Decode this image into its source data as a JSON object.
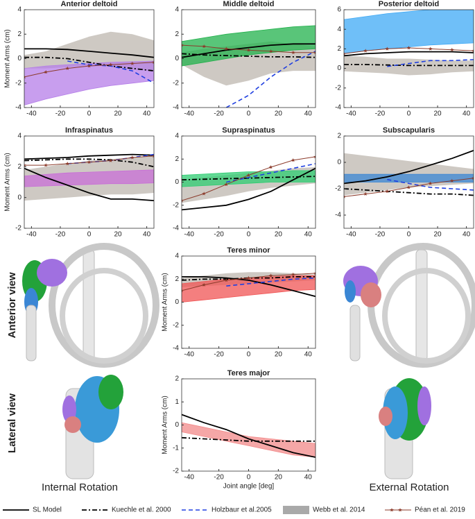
{
  "chart_data": [
    {
      "type": "line",
      "title": "Anterior deltoid",
      "ylabel": "Moment Arms (cm)",
      "x": [
        -45,
        -30,
        -15,
        0,
        15,
        30,
        45
      ],
      "xlim": [
        -45,
        45
      ],
      "xticks": [
        -40,
        -20,
        0,
        20,
        40
      ],
      "ylim": [
        -4,
        4
      ],
      "yticks": [
        -4,
        -2,
        0,
        2,
        4
      ],
      "series": [
        {
          "style": "band",
          "color": "#c9c3bd",
          "lower": [
            -0.8,
            -0.8,
            -0.7,
            -0.6,
            -0.6,
            -0.9,
            -1
          ],
          "upper": [
            0.3,
            0.6,
            1.2,
            1.8,
            2.2,
            2.0,
            1.5
          ]
        },
        {
          "style": "fan",
          "color": "#b57ee8",
          "lower": [
            -3.8,
            -3.3,
            -2.9,
            -2.5,
            -2.2,
            -2,
            -1.8
          ],
          "upper": [
            -0.8,
            -0.6,
            -0.5,
            -0.4,
            -0.3,
            -0.25,
            -0.2
          ]
        },
        {
          "style": "solid",
          "color": "#000000",
          "values": [
            0.8,
            0.8,
            0.75,
            0.6,
            0.45,
            0.3,
            0.1
          ]
        },
        {
          "style": "dashdot",
          "color": "#000000",
          "values": [
            0.1,
            0.1,
            0,
            -0.3,
            -0.6,
            -0.8,
            -1.0
          ]
        },
        {
          "style": "dashed",
          "color": "#1f3fe0",
          "values": [
            null,
            null,
            -0.2,
            -0.5,
            -0.6,
            -1.0,
            -2.0
          ]
        },
        {
          "style": "markers",
          "color": "#8b3a2a",
          "values": [
            -1.5,
            -1.1,
            -0.8,
            -0.6,
            -0.5,
            -0.4,
            -0.3
          ]
        }
      ]
    },
    {
      "type": "line",
      "title": "Middle deltoid",
      "x": [
        -45,
        -30,
        -15,
        0,
        15,
        30,
        45
      ],
      "xlim": [
        -45,
        45
      ],
      "xticks": [
        -40,
        -20,
        0,
        20,
        40
      ],
      "ylim": [
        -4,
        4
      ],
      "yticks": [
        -4,
        -2,
        0,
        2,
        4
      ],
      "series": [
        {
          "style": "band",
          "color": "#c9c3bd",
          "lower": [
            -0.5,
            -1.5,
            -2.2,
            -1.8,
            -1.2,
            -1,
            -1
          ],
          "upper": [
            0.5,
            0.8,
            1,
            1.2,
            1.4,
            1.2,
            1.0
          ]
        },
        {
          "style": "fan",
          "color": "#22b14c",
          "lower": [
            -0.6,
            -0.3,
            0,
            0.3,
            0.5,
            0.7,
            0.8
          ],
          "upper": [
            1.4,
            1.7,
            2,
            2.2,
            2.4,
            2.6,
            2.7
          ]
        },
        {
          "style": "solid",
          "color": "#000000",
          "values": [
            0.1,
            0.4,
            0.7,
            0.9,
            1.1,
            1.2,
            1.2
          ]
        },
        {
          "style": "dashdot",
          "color": "#000000",
          "values": [
            0.4,
            0.3,
            0.25,
            0.2,
            0.15,
            0.15,
            0.1
          ]
        },
        {
          "style": "dashed",
          "color": "#1f3fe0",
          "values": [
            null,
            null,
            -4,
            -3,
            -1.5,
            -0.3,
            0.6
          ]
        },
        {
          "style": "markers",
          "color": "#8b3a2a",
          "values": [
            1.1,
            1.0,
            0.8,
            0.7,
            0.6,
            0.5,
            0.5
          ]
        }
      ]
    },
    {
      "type": "line",
      "title": "Posterior deltoid",
      "x": [
        -45,
        -30,
        -15,
        0,
        15,
        30,
        45
      ],
      "xlim": [
        -45,
        45
      ],
      "xticks": [
        -40,
        -20,
        0,
        20,
        40
      ],
      "ylim": [
        -4,
        6
      ],
      "yticks": [
        -4,
        -2,
        0,
        2,
        4,
        6
      ],
      "series": [
        {
          "style": "band",
          "color": "#c9c3bd",
          "lower": [
            -0.3,
            -0.4,
            -0.5,
            -0.7,
            -0.6,
            -0.4,
            -0.3
          ],
          "upper": [
            1.3,
            1.2,
            1.0,
            1.0,
            0.9,
            0.8,
            0.8
          ]
        },
        {
          "style": "fan",
          "color": "#3fa9f5",
          "lower": [
            1.5,
            1.8,
            2,
            2.2,
            2.4,
            2.5,
            2.6
          ],
          "upper": [
            5,
            5.3,
            5.6,
            5.8,
            6,
            6,
            6
          ]
        },
        {
          "style": "solid",
          "color": "#000000",
          "values": [
            1.3,
            1.5,
            1.6,
            1.7,
            1.7,
            1.7,
            1.6
          ]
        },
        {
          "style": "dashdot",
          "color": "#000000",
          "values": [
            0.4,
            0.4,
            0.35,
            0.3,
            0.3,
            0.3,
            0.3
          ]
        },
        {
          "style": "dashed",
          "color": "#1f3fe0",
          "values": [
            null,
            null,
            0.2,
            0.5,
            0.8,
            0.8,
            0.9
          ]
        },
        {
          "style": "markers",
          "color": "#8b3a2a",
          "values": [
            1.5,
            1.8,
            2.0,
            2.1,
            2.0,
            1.9,
            1.8
          ]
        }
      ]
    },
    {
      "type": "line",
      "title": "Infraspinatus",
      "ylabel": "Moment Arms (cm)",
      "x": [
        -45,
        -30,
        -15,
        0,
        15,
        30,
        45
      ],
      "xlim": [
        -45,
        45
      ],
      "xticks": [
        -40,
        -20,
        0,
        20,
        40
      ],
      "ylim": [
        -2,
        4
      ],
      "yticks": [
        -2,
        0,
        2,
        4
      ],
      "series": [
        {
          "style": "band",
          "color": "#c9c3bd",
          "lower": [
            -0.2,
            -0.1,
            0,
            0.1,
            0.2,
            0.2,
            0.3
          ],
          "upper": [
            1.8,
            2.0,
            2.2,
            2.4,
            2.5,
            2.6,
            2.7
          ]
        },
        {
          "style": "fan",
          "color": "#c86dd7",
          "lower": [
            0.7,
            0.75,
            0.8,
            0.85,
            0.9,
            0.9,
            0.95
          ],
          "upper": [
            1.4,
            1.5,
            1.6,
            1.65,
            1.7,
            1.75,
            1.8
          ]
        },
        {
          "style": "solid",
          "color": "#000000",
          "values": [
            2.5,
            2.55,
            2.6,
            2.7,
            2.75,
            2.8,
            2.75
          ]
        },
        {
          "style": "solid",
          "color": "#000000",
          "values": [
            1.9,
            1.3,
            0.8,
            0.3,
            -0.1,
            -0.1,
            -0.2
          ]
        },
        {
          "style": "dashdot",
          "color": "#000000",
          "values": [
            2.4,
            2.45,
            2.5,
            2.5,
            2.45,
            2.3,
            2.0
          ]
        },
        {
          "style": "dashed",
          "color": "#1f3fe0",
          "values": [
            null,
            null,
            2.2,
            2.3,
            2.4,
            2.6,
            2.8
          ]
        },
        {
          "style": "markers",
          "color": "#8b3a2a",
          "values": [
            2.1,
            2.1,
            2.2,
            2.3,
            2.4,
            2.6,
            2.7
          ]
        }
      ]
    },
    {
      "type": "line",
      "title": "Supraspinatus",
      "x": [
        -45,
        -30,
        -15,
        0,
        15,
        30,
        45
      ],
      "xlim": [
        -45,
        45
      ],
      "xticks": [
        -40,
        -20,
        0,
        20,
        40
      ],
      "ylim": [
        -4,
        4
      ],
      "yticks": [
        -4,
        -2,
        0,
        2,
        4
      ],
      "series": [
        {
          "style": "band",
          "color": "#c9c3bd",
          "lower": [
            -1.8,
            -1.5,
            -1.2,
            -0.8,
            -0.5,
            -0.3,
            -0.1
          ],
          "upper": [
            0.2,
            0.4,
            0.6,
            0.8,
            1,
            1.2,
            1.3
          ]
        },
        {
          "style": "fan",
          "color": "#2ecc71",
          "lower": [
            -0.4,
            -0.3,
            -0.2,
            -0.1,
            0,
            0,
            0
          ],
          "upper": [
            0.6,
            0.7,
            0.8,
            0.9,
            0.9,
            1.0,
            1.0
          ]
        },
        {
          "style": "solid",
          "color": "#000000",
          "values": [
            -2.4,
            -2.2,
            -2,
            -1.5,
            -0.8,
            0.2,
            1.2
          ]
        },
        {
          "style": "dashdot",
          "color": "#000000",
          "values": [
            0.2,
            0.25,
            0.3,
            0.35,
            0.4,
            0.45,
            0.5
          ]
        },
        {
          "style": "dashed",
          "color": "#1f3fe0",
          "values": [
            null,
            null,
            0,
            0.4,
            0.8,
            1.2,
            1.6
          ]
        },
        {
          "style": "markers",
          "color": "#8b3a2a",
          "values": [
            -1.6,
            -1,
            -0.2,
            0.6,
            1.3,
            1.9,
            2.2
          ]
        }
      ]
    },
    {
      "type": "line",
      "title": "Subscapularis",
      "x": [
        -45,
        -30,
        -15,
        0,
        15,
        30,
        45
      ],
      "xlim": [
        -45,
        45
      ],
      "xticks": [
        -40,
        -20,
        0,
        20,
        40
      ],
      "ylim": [
        -5,
        2
      ],
      "yticks": [
        -4,
        -2,
        0,
        2
      ],
      "series": [
        {
          "style": "band",
          "color": "#c9c3bd",
          "lower": [
            -2.5,
            -2.3,
            -2.1,
            -1.9,
            -1.8,
            -1.7,
            -1.6
          ],
          "upper": [
            0.7,
            0.5,
            0.3,
            0.1,
            -0.1,
            -0.3,
            -0.5
          ]
        },
        {
          "style": "fan",
          "color": "#3a86d4",
          "lower": [
            -1.5,
            -1.5,
            -1.5,
            -1.5,
            -1.5,
            -1.5,
            -1.5
          ],
          "upper": [
            -0.9,
            -0.9,
            -0.9,
            -0.9,
            -0.9,
            -0.9,
            -0.9
          ]
        },
        {
          "style": "solid",
          "color": "#000000",
          "values": [
            -1.6,
            -1.4,
            -1.1,
            -0.7,
            -0.2,
            0.3,
            0.9
          ]
        },
        {
          "style": "dashdot",
          "color": "#000000",
          "values": [
            -2.0,
            -2.1,
            -2.2,
            -2.3,
            -2.4,
            -2.4,
            -2.5
          ]
        },
        {
          "style": "dashed",
          "color": "#1f3fe0",
          "values": [
            null,
            null,
            -1.3,
            -1.6,
            -1.9,
            -2.0,
            -2.1
          ]
        },
        {
          "style": "markers",
          "color": "#8b3a2a",
          "values": [
            -2.6,
            -2.4,
            -2.2,
            -1.9,
            -1.6,
            -1.4,
            -1.2
          ]
        }
      ]
    },
    {
      "type": "line",
      "title": "Teres minor",
      "ylabel": "Moment Arms (cm)",
      "x": [
        -45,
        -30,
        -15,
        0,
        15,
        30,
        45
      ],
      "xlim": [
        -45,
        45
      ],
      "xticks": [
        -40,
        -20,
        0,
        20,
        40
      ],
      "ylim": [
        -4,
        4
      ],
      "yticks": [
        -4,
        -2,
        0,
        2,
        4
      ],
      "series": [
        {
          "style": "band",
          "color": "#c9c3bd",
          "lower": [
            1.3,
            1.4,
            1.5,
            1.6,
            1.7,
            1.8,
            1.9
          ],
          "upper": [
            2.1,
            2.3,
            2.5,
            2.6,
            2.6,
            2.5,
            2.4
          ]
        },
        {
          "style": "fan",
          "color": "#f05454",
          "lower": [
            0,
            0.2,
            0.4,
            0.6,
            0.8,
            1,
            1.1
          ],
          "upper": [
            1.6,
            1.8,
            2.0,
            2.1,
            2.2,
            2.3,
            2.3
          ]
        },
        {
          "style": "solid",
          "color": "#000000",
          "values": [
            2.2,
            2.2,
            2.1,
            1.9,
            1.5,
            1.0,
            0.5
          ]
        },
        {
          "style": "dashdot",
          "color": "#000000",
          "values": [
            1.9,
            2.0,
            2.0,
            2.1,
            2.1,
            2.2,
            2.2
          ]
        },
        {
          "style": "dashed",
          "color": "#1f3fe0",
          "values": [
            null,
            null,
            1.4,
            1.6,
            1.8,
            2.0,
            2.1
          ]
        },
        {
          "style": "markers",
          "color": "#8b3a2a",
          "values": [
            1.0,
            1.5,
            1.9,
            2.1,
            2.3,
            2.4,
            2.5
          ]
        }
      ]
    },
    {
      "type": "line",
      "title": "Teres major",
      "ylabel": "Moment Arms (cm)",
      "xlabel": "Joint angle [deg]",
      "x": [
        -45,
        -30,
        -15,
        0,
        15,
        30,
        45
      ],
      "xlim": [
        -45,
        45
      ],
      "xticks": [
        -40,
        -20,
        0,
        20,
        40
      ],
      "ylim": [
        -2,
        2
      ],
      "yticks": [
        -2,
        -1,
        0,
        1,
        2
      ],
      "series": [
        {
          "style": "fan",
          "color": "#f28a8a",
          "lower": [
            -0.3,
            -0.5,
            -0.7,
            -0.9,
            -1.1,
            -1.3,
            -1.4
          ],
          "upper": [
            0.1,
            -0.1,
            -0.3,
            -0.5,
            -0.6,
            -0.7,
            -0.8
          ]
        },
        {
          "style": "solid",
          "color": "#000000",
          "values": [
            0.45,
            0.1,
            -0.2,
            -0.6,
            -0.9,
            -1.2,
            -1.4
          ]
        },
        {
          "style": "dashdot",
          "color": "#000000",
          "values": [
            -0.55,
            -0.6,
            -0.65,
            -0.7,
            -0.7,
            -0.7,
            -0.7
          ]
        }
      ]
    }
  ],
  "legend": [
    {
      "name": "SL Model",
      "style": "solid",
      "color": "#000000"
    },
    {
      "name": "Kuechle et al. 2000",
      "style": "dashdot",
      "color": "#000000"
    },
    {
      "name": "Holzbaur et al.2005",
      "style": "dashed",
      "color": "#1f3fe0"
    },
    {
      "name": "Webb et al. 2014",
      "style": "band",
      "color": "#a9a9a9"
    },
    {
      "name": "Péan et al. 2019",
      "style": "markers",
      "color": "#8b3a2a"
    }
  ],
  "view_labels": [
    "Anterior view",
    "Lateral view"
  ],
  "rotation_labels": [
    "Internal Rotation",
    "External Rotation"
  ]
}
